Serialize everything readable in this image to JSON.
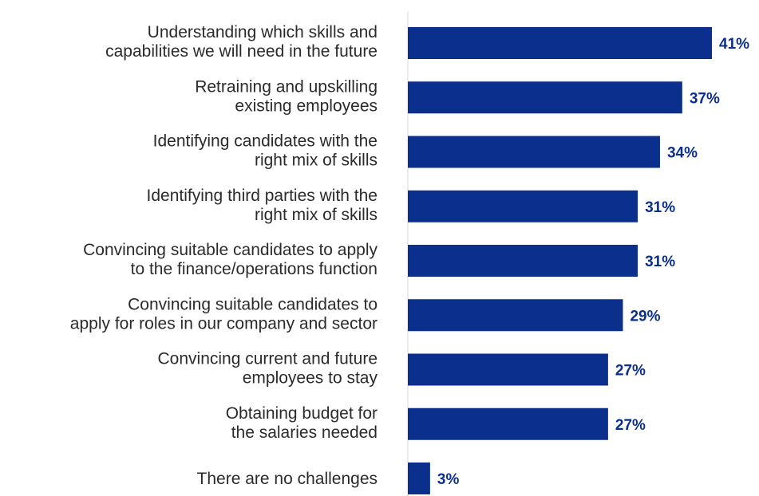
{
  "chart_data": {
    "type": "bar",
    "orientation": "horizontal",
    "categories": [
      [
        "Understanding which skills and",
        "capabilities we will need in the future"
      ],
      [
        "Retraining and upskilling",
        "existing employees"
      ],
      [
        "Identifying candidates with the",
        "right mix of skills"
      ],
      [
        "Identifying third parties with the",
        "right mix of skills"
      ],
      [
        "Convincing suitable candidates to apply",
        "to the finance/operations function"
      ],
      [
        "Convincing suitable candidates to",
        "apply for roles in our company and sector"
      ],
      [
        "Convincing current and future",
        "employees to stay"
      ],
      [
        "Obtaining budget for",
        "the salaries needed"
      ],
      [
        "There are no challenges"
      ]
    ],
    "values": [
      41,
      37,
      34,
      31,
      31,
      29,
      27,
      27,
      3
    ],
    "value_labels": [
      "41%",
      "37%",
      "34%",
      "31%",
      "31%",
      "29%",
      "27%",
      "27%",
      "3%"
    ],
    "xlim": [
      0,
      41
    ],
    "grid": false,
    "colors": {
      "bar": "#0a2f8c",
      "value_text": "#0a2f8c",
      "axis_line": "#d9d9d9",
      "label_text": "#2b2b2b"
    }
  }
}
